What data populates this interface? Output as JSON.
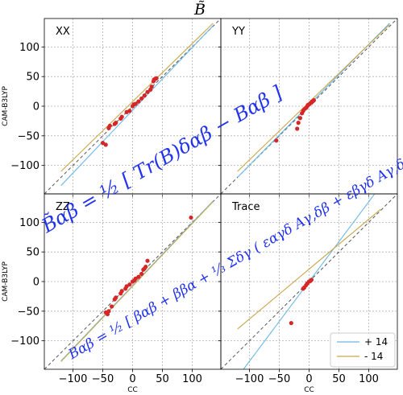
{
  "figure_title": "B̃",
  "chart_data": [
    {
      "type": "scatter",
      "title": "XX",
      "ylabel": "CAM-B3LYP",
      "xlabel": "",
      "xlim": [
        -148,
        148
      ],
      "ylim": [
        -148,
        148
      ],
      "xticks": [
        -100,
        -50,
        0,
        50,
        100
      ],
      "yticks": [
        -100,
        -50,
        0,
        50,
        100
      ],
      "show_xticklabels": false,
      "show_yticklabels": true,
      "grid": true,
      "points": [
        [
          -45,
          -65
        ],
        [
          -50,
          -62
        ],
        [
          -40,
          -37
        ],
        [
          -38,
          -33
        ],
        [
          -30,
          -30
        ],
        [
          -28,
          -28
        ],
        [
          -20,
          -21
        ],
        [
          -18,
          -18
        ],
        [
          -10,
          -10
        ],
        [
          -5,
          -8
        ],
        [
          0,
          0
        ],
        [
          2,
          3
        ],
        [
          5,
          4
        ],
        [
          10,
          8
        ],
        [
          15,
          13
        ],
        [
          20,
          18
        ],
        [
          25,
          24
        ],
        [
          30,
          28
        ],
        [
          32,
          33
        ],
        [
          35,
          42
        ],
        [
          36,
          45
        ],
        [
          38,
          46
        ],
        [
          40,
          47
        ]
      ],
      "series": [
        {
          "name": "+ 14",
          "color": "#6cb8e8",
          "x": [
            -120,
            135
          ],
          "y": [
            -134,
            136
          ]
        },
        {
          "name": "- 14",
          "color": "#c9a64a",
          "x": [
            -120,
            135
          ],
          "y": [
            -110,
            140
          ]
        }
      ]
    },
    {
      "type": "scatter",
      "title": "YY",
      "ylabel": "",
      "xlabel": "",
      "xlim": [
        -148,
        148
      ],
      "ylim": [
        -148,
        148
      ],
      "xticks": [
        -100,
        -50,
        0,
        50,
        100
      ],
      "yticks": [
        -100,
        -50,
        0,
        50,
        100
      ],
      "show_xticklabels": false,
      "show_yticklabels": false,
      "grid": true,
      "points": [
        [
          -55,
          -58
        ],
        [
          -20,
          -38
        ],
        [
          -18,
          -28
        ],
        [
          -15,
          -20
        ],
        [
          -12,
          -12
        ],
        [
          -10,
          -8
        ],
        [
          -8,
          -5
        ],
        [
          -5,
          -3
        ],
        [
          -3,
          0
        ],
        [
          -2,
          2
        ],
        [
          0,
          3
        ],
        [
          2,
          5
        ],
        [
          4,
          6
        ],
        [
          5,
          8
        ],
        [
          7,
          9
        ],
        [
          8,
          10
        ]
      ],
      "series": [
        {
          "name": "+ 14",
          "color": "#6cb8e8",
          "x": [
            -120,
            135
          ],
          "y": [
            -120,
            140
          ]
        },
        {
          "name": "- 14",
          "color": "#c9a64a",
          "x": [
            -120,
            135
          ],
          "y": [
            -110,
            138
          ]
        }
      ]
    },
    {
      "type": "scatter",
      "title": "ZZ",
      "ylabel": "CAM-B3LYP",
      "xlabel": "CC",
      "xlim": [
        -148,
        148
      ],
      "ylim": [
        -148,
        148
      ],
      "xticks": [
        -100,
        -50,
        0,
        50,
        100
      ],
      "yticks": [
        -100,
        -50,
        0,
        50,
        100
      ],
      "show_xticklabels": true,
      "show_yticklabels": true,
      "grid": true,
      "points": [
        [
          -45,
          -52
        ],
        [
          -42,
          -55
        ],
        [
          -40,
          -50
        ],
        [
          -35,
          -42
        ],
        [
          -30,
          -30
        ],
        [
          -28,
          -27
        ],
        [
          -20,
          -20
        ],
        [
          -18,
          -16
        ],
        [
          -12,
          -12
        ],
        [
          -10,
          -8
        ],
        [
          -5,
          -5
        ],
        [
          0,
          0
        ],
        [
          3,
          2
        ],
        [
          5,
          5
        ],
        [
          10,
          8
        ],
        [
          15,
          13
        ],
        [
          18,
          20
        ],
        [
          20,
          22
        ],
        [
          22,
          25
        ],
        [
          25,
          35
        ],
        [
          98,
          108
        ]
      ],
      "series": [
        {
          "name": "+ 14",
          "color": "#6cb8e8",
          "x": [
            -120,
            135
          ],
          "y": [
            -134,
            136
          ]
        },
        {
          "name": "- 14",
          "color": "#c9a64a",
          "x": [
            -120,
            135
          ],
          "y": [
            -135,
            135
          ]
        }
      ]
    },
    {
      "type": "scatter",
      "title": "Trace",
      "ylabel": "",
      "xlabel": "CC",
      "xlim": [
        -148,
        148
      ],
      "ylim": [
        -148,
        148
      ],
      "xticks": [
        -100,
        -50,
        0,
        50,
        100
      ],
      "yticks": [
        -100,
        -50,
        0,
        50,
        100
      ],
      "show_xticklabels": true,
      "show_yticklabels": false,
      "grid": true,
      "points": [
        [
          -30,
          -70
        ],
        [
          -10,
          -12
        ],
        [
          -8,
          -10
        ],
        [
          -5,
          -6
        ],
        [
          -3,
          -3
        ],
        [
          0,
          0
        ],
        [
          2,
          1
        ],
        [
          4,
          3
        ]
      ],
      "series": [
        {
          "name": "+ 14",
          "color": "#6cb8e8",
          "x": [
            -110,
            110
          ],
          "y": [
            -148,
            148
          ]
        },
        {
          "name": "- 14",
          "color": "#c9a64a",
          "x": [
            -120,
            120
          ],
          "y": [
            -80,
            122
          ]
        }
      ],
      "legend": "bottom-right"
    }
  ],
  "annotations": {
    "formula_top": "B̃αβ = ½ [ Tr(B)δαβ − Bαβ ]",
    "formula_bottom": "Bαβ = ½ [ βαβ + ββα + ⅓ Σδγ ( εαγδ Aγ,δβ + εβγδ Aγ,δα ) ]"
  },
  "colors": {
    "points": "#d62728",
    "identity": "#555555",
    "formula": "#2233ee",
    "grid": "#b0b0b0"
  }
}
